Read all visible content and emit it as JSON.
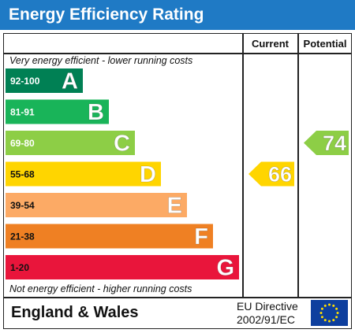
{
  "header": {
    "title": "Energy Efficiency Rating"
  },
  "columns": {
    "current": "Current",
    "potential": "Potential"
  },
  "notes": {
    "top": "Very energy efficient - lower running costs",
    "bottom": "Not energy efficient - higher running costs"
  },
  "footer": {
    "region": "England & Wales",
    "directive_line1": "EU Directive",
    "directive_line2": "2002/91/EC"
  },
  "chart_data": {
    "type": "bar",
    "title": "Energy Efficiency Rating",
    "bands": [
      {
        "range": "92-100",
        "letter": "A",
        "color": "#008054"
      },
      {
        "range": "81-91",
        "letter": "B",
        "color": "#19b459"
      },
      {
        "range": "69-80",
        "letter": "C",
        "color": "#8dce46"
      },
      {
        "range": "55-68",
        "letter": "D",
        "color": "#ffd500"
      },
      {
        "range": "39-54",
        "letter": "E",
        "color": "#fcaa65"
      },
      {
        "range": "21-38",
        "letter": "F",
        "color": "#ef8023"
      },
      {
        "range": "1-20",
        "letter": "G",
        "color": "#e9153b"
      }
    ],
    "current": {
      "value": 66,
      "band": "D",
      "color": "#ffd500"
    },
    "potential": {
      "value": 74,
      "band": "C",
      "color": "#8dce46"
    }
  },
  "colors": {
    "header": "#1f7ac5",
    "eu_flag": "#0e3f9e",
    "eu_stars": "#ffdd00"
  }
}
